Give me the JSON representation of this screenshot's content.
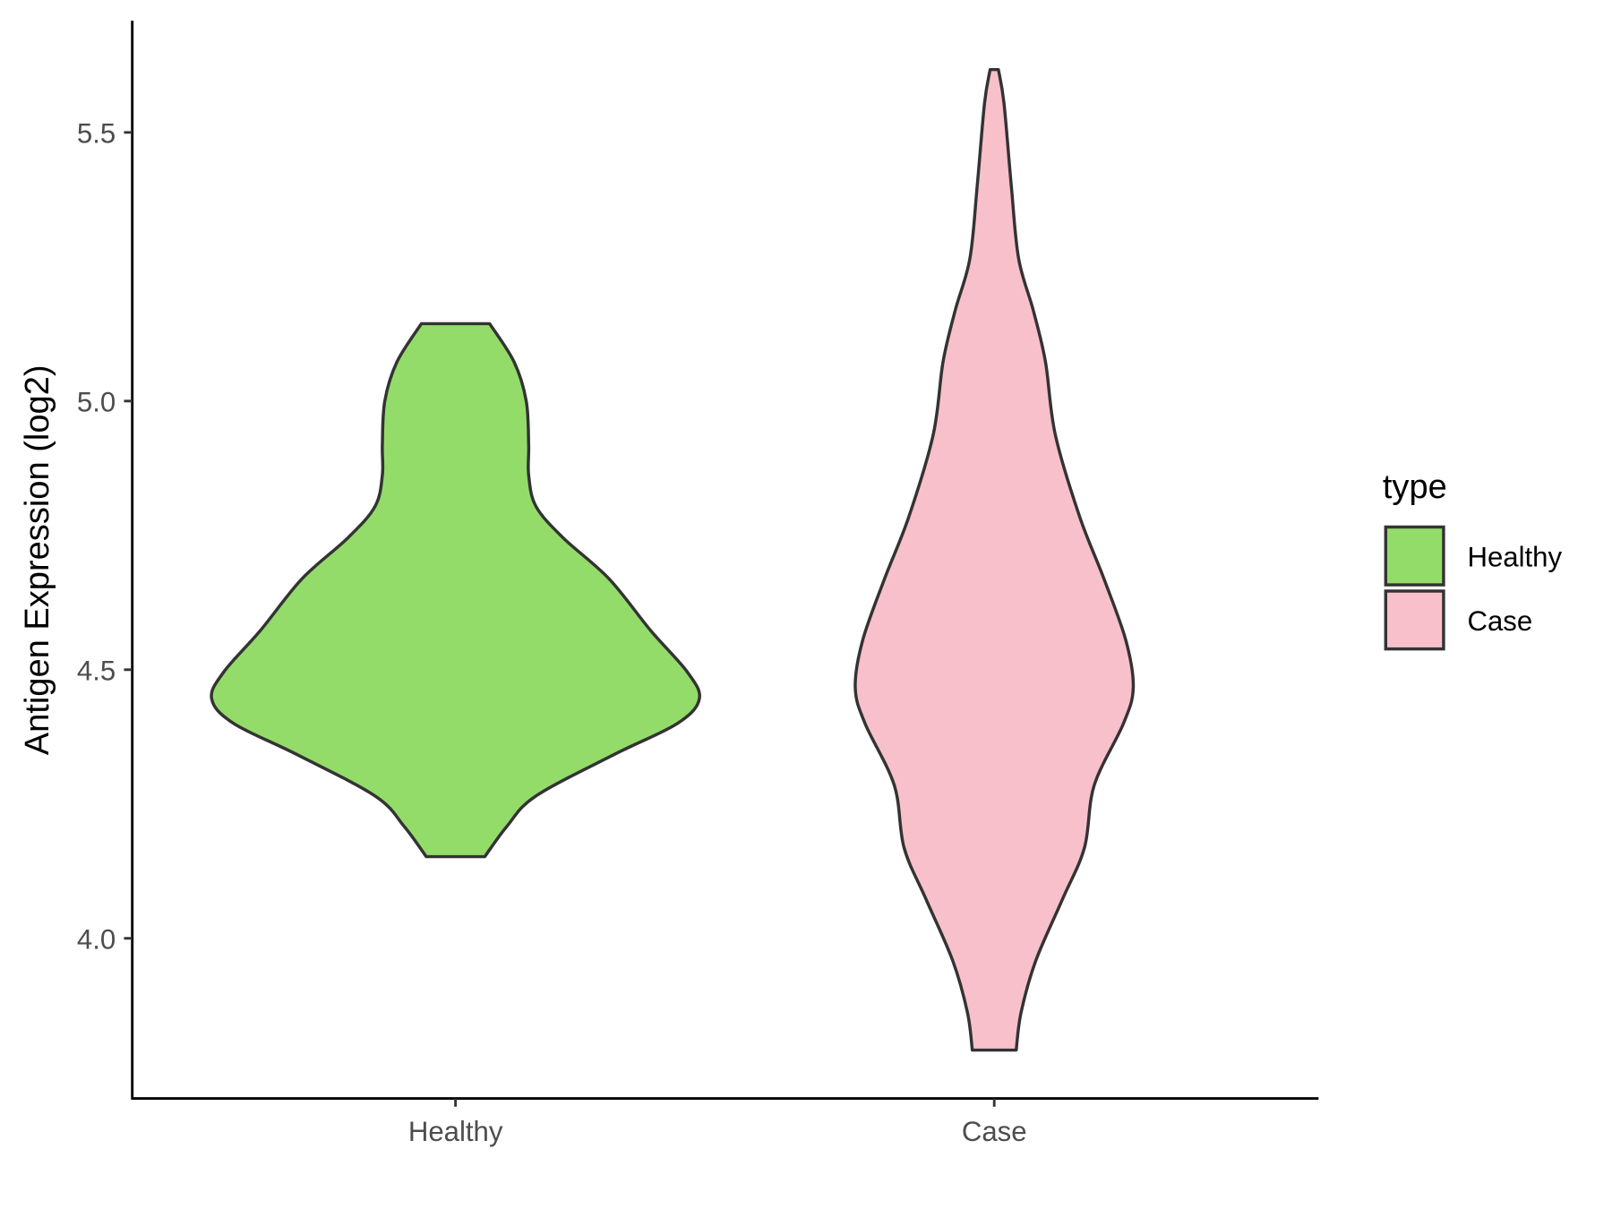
{
  "chart_data": {
    "type": "violin",
    "title": "",
    "xlabel": "",
    "ylabel": "Antigen Expression (log2)",
    "ylim": [
      3.702,
      5.708
    ],
    "xlim": [
      0.4,
      2.6
    ],
    "grid": false,
    "y_ticks": [
      4.0,
      4.5,
      5.0,
      5.5
    ],
    "y_tick_labels": [
      "4.0",
      "4.5",
      "5.0",
      "5.5"
    ],
    "categories": [
      "Healthy",
      "Case"
    ],
    "legend": {
      "title": "type",
      "placement": "right",
      "entries": [
        "Healthy",
        "Case"
      ]
    },
    "series": [
      {
        "name": "Healthy",
        "color": "#93dc6a",
        "min": 4.152,
        "max": 5.144,
        "density_profile": [
          [
            4.152,
            0.12
          ],
          [
            4.208,
            0.21
          ],
          [
            4.265,
            0.33
          ],
          [
            4.342,
            0.65
          ],
          [
            4.4,
            0.91
          ],
          [
            4.446,
            1.0
          ],
          [
            4.496,
            0.95
          ],
          [
            4.573,
            0.8
          ],
          [
            4.669,
            0.63
          ],
          [
            4.746,
            0.44
          ],
          [
            4.804,
            0.33
          ],
          [
            4.862,
            0.3
          ],
          [
            4.919,
            0.3
          ],
          [
            5.0,
            0.29
          ],
          [
            5.073,
            0.24
          ],
          [
            5.144,
            0.14
          ]
        ]
      },
      {
        "name": "Case",
        "color": "#f8c0cb",
        "min": 3.792,
        "max": 5.617,
        "density_profile": [
          [
            3.792,
            0.09
          ],
          [
            3.862,
            0.11
          ],
          [
            3.958,
            0.17
          ],
          [
            4.073,
            0.28
          ],
          [
            4.169,
            0.37
          ],
          [
            4.285,
            0.41
          ],
          [
            4.4,
            0.53
          ],
          [
            4.467,
            0.57
          ],
          [
            4.554,
            0.54
          ],
          [
            4.669,
            0.45
          ],
          [
            4.785,
            0.35
          ],
          [
            4.938,
            0.25
          ],
          [
            5.073,
            0.21
          ],
          [
            5.169,
            0.16
          ],
          [
            5.265,
            0.1
          ],
          [
            5.4,
            0.07
          ],
          [
            5.554,
            0.04
          ],
          [
            5.617,
            0.017
          ]
        ]
      }
    ]
  }
}
